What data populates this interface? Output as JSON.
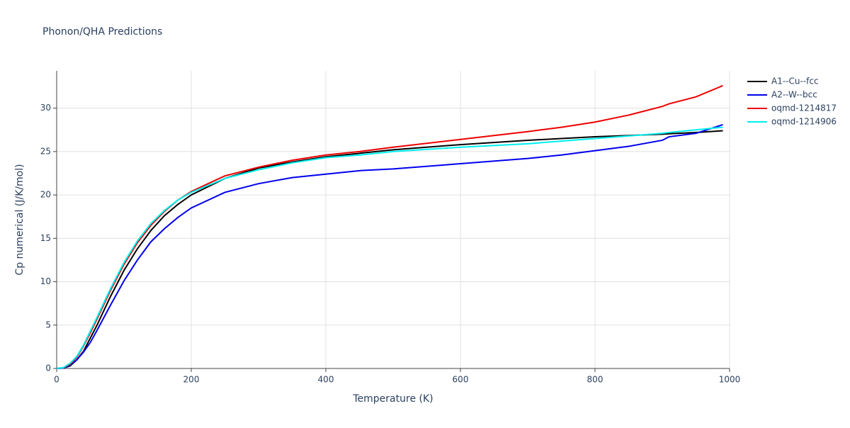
{
  "chart_data": {
    "type": "line",
    "title": "Phonon/QHA Predictions",
    "x_label": "Temperature (K)",
    "y_label": "Cp numerical (J/K/mol)",
    "x": [
      0,
      10,
      20,
      30,
      40,
      50,
      60,
      80,
      100,
      120,
      140,
      160,
      180,
      200,
      250,
      300,
      350,
      400,
      450,
      500,
      600,
      700,
      750,
      800,
      850,
      900,
      910,
      950,
      990
    ],
    "series": [
      {
        "name": "A1--Cu--fcc",
        "color": "#000000",
        "values": [
          0,
          0.05,
          0.3,
          1.0,
          2.0,
          3.5,
          5.0,
          8.3,
          11.3,
          13.8,
          15.9,
          17.6,
          18.9,
          20.0,
          21.9,
          23.1,
          23.8,
          24.4,
          24.8,
          25.2,
          25.8,
          26.3,
          26.5,
          26.7,
          26.85,
          27.0,
          27.05,
          27.2,
          27.4
        ]
      },
      {
        "name": "A2--W--bcc",
        "color": "#0000ee",
        "values": [
          0,
          0.05,
          0.4,
          1.0,
          1.9,
          3.0,
          4.4,
          7.3,
          10.1,
          12.5,
          14.6,
          16.1,
          17.4,
          18.5,
          20.3,
          21.3,
          22.0,
          22.4,
          22.8,
          23.0,
          23.6,
          24.2,
          24.6,
          25.1,
          25.6,
          26.3,
          26.7,
          27.1,
          28.1
        ]
      },
      {
        "name": "oqmd-1214817",
        "color": "#ee0000",
        "values": [
          0,
          0.1,
          0.5,
          1.3,
          2.6,
          4.1,
          5.7,
          9.0,
          12.0,
          14.5,
          16.5,
          18.1,
          19.4,
          20.4,
          22.2,
          23.2,
          24.0,
          24.6,
          25.0,
          25.5,
          26.4,
          27.3,
          27.8,
          28.4,
          29.2,
          30.2,
          30.5,
          31.3,
          32.6
        ]
      },
      {
        "name": "oqmd-1214906",
        "color": "#00eeee",
        "values": [
          0,
          0.1,
          0.6,
          1.4,
          2.7,
          4.3,
          5.9,
          9.2,
          12.2,
          14.7,
          16.7,
          18.2,
          19.4,
          20.3,
          21.9,
          22.9,
          23.7,
          24.3,
          24.6,
          25.0,
          25.5,
          25.9,
          26.2,
          26.5,
          26.8,
          27.1,
          27.2,
          27.5,
          27.8
        ]
      }
    ],
    "xlim": [
      0,
      1000
    ],
    "ylim": [
      0,
      34.3
    ],
    "xticks": [
      0,
      200,
      400,
      600,
      800,
      1000
    ],
    "yticks": [
      0,
      5,
      10,
      15,
      20,
      25,
      30
    ],
    "grid": true,
    "legend": "right"
  }
}
